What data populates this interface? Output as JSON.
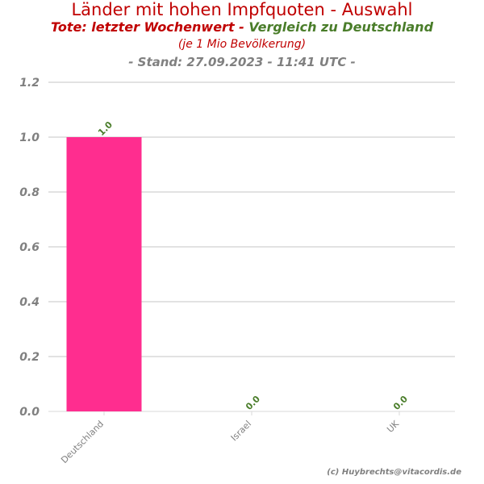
{
  "header": {
    "title": "Länder mit hohen Impfquoten - Auswahl",
    "subtitle_red": "Tote: letzter Wochenwert - ",
    "subtitle_green": "Vergleich zu Deutschland",
    "unit_note": "(je 1 Mio Bevölkerung)",
    "stand": "- Stand: 27.09.2023 - 11:41 UTC -"
  },
  "credit": "(c) Huybrechts@vitacordis.de",
  "colors": {
    "bar": "#ff2d8f",
    "data_label": "#4a7d2a",
    "axis_text": "#808080",
    "grid": "#d9d9d9"
  },
  "chart_data": {
    "type": "bar",
    "categories": [
      "Deutschland",
      "Israel",
      "UK"
    ],
    "values": [
      1.0,
      0.0,
      0.0
    ],
    "data_labels": [
      "1.0",
      "0.0",
      "0.0"
    ],
    "ylim": [
      0,
      1.2
    ],
    "yticks": [
      0.0,
      0.2,
      0.4,
      0.6,
      0.8,
      1.0,
      1.2
    ],
    "ytick_labels": [
      "0.0",
      "0.2",
      "0.4",
      "0.6",
      "0.8",
      "1.0",
      "1.2"
    ],
    "grid": true,
    "legend": "none"
  }
}
